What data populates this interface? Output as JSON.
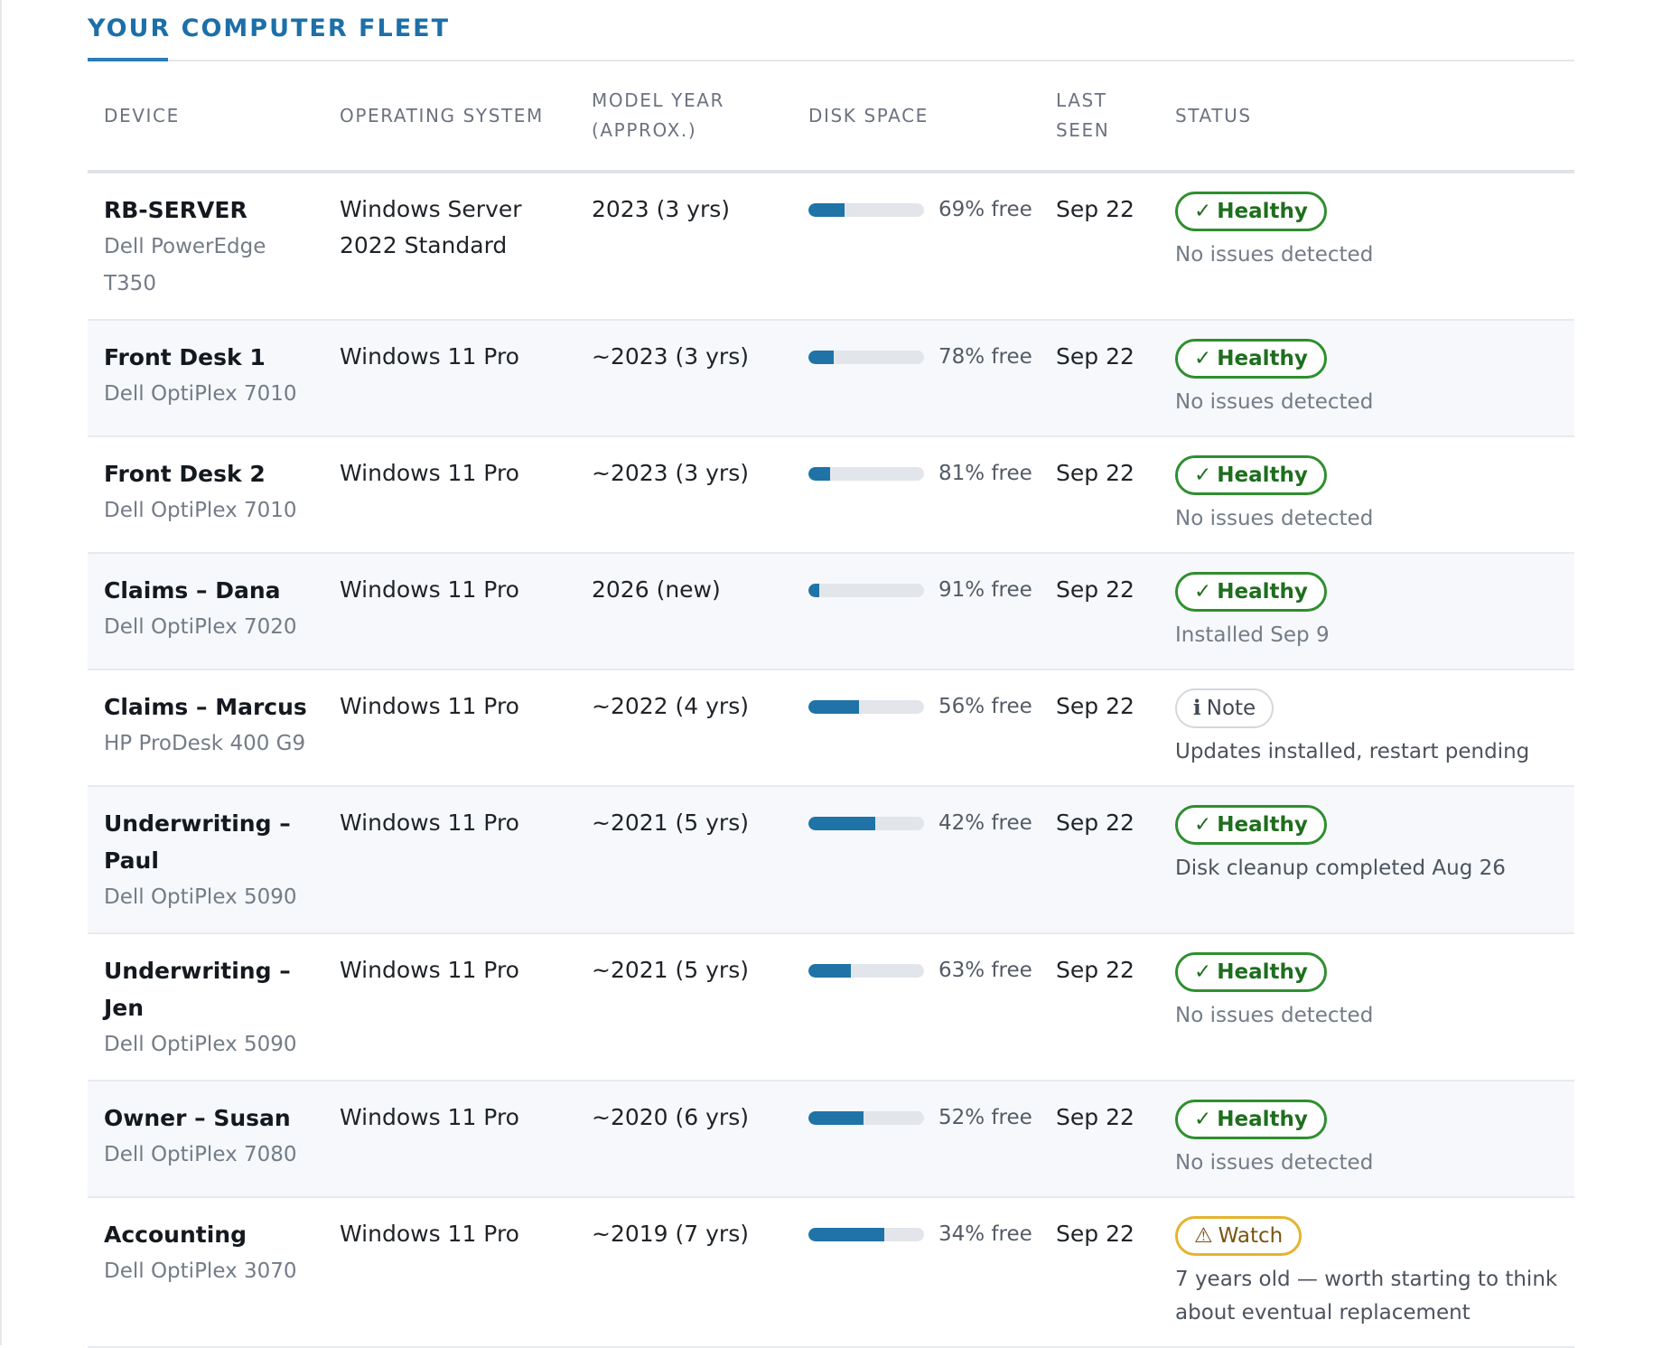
{
  "section": {
    "title": "YOUR COMPUTER FLEET"
  },
  "table": {
    "headers": {
      "device": "DEVICE",
      "os": "OPERATING SYSTEM",
      "model_year_1": "MODEL YEAR",
      "model_year_2": "(APPROX.)",
      "disk": "DISK SPACE",
      "last_seen_1": "LAST",
      "last_seen_2": "SEEN",
      "status": "STATUS"
    },
    "rows": [
      {
        "name": "RB-SERVER",
        "model": "Dell PowerEdge T350",
        "os": "Windows Server 2022 Standard",
        "year": "2023 (3 yrs)",
        "disk_used_pct": 31,
        "disk_label": "69% free",
        "last_seen": "Sep 22",
        "status": "healthy",
        "status_label": "Healthy",
        "status_icon": "✓",
        "status_note": "No issues detected"
      },
      {
        "name": "Front Desk 1",
        "model": "Dell OptiPlex 7010",
        "os": "Windows 11 Pro",
        "year": "~2023 (3 yrs)",
        "disk_used_pct": 22,
        "disk_label": "78% free",
        "last_seen": "Sep 22",
        "status": "healthy",
        "status_label": "Healthy",
        "status_icon": "✓",
        "status_note": "No issues detected"
      },
      {
        "name": "Front Desk 2",
        "model": "Dell OptiPlex 7010",
        "os": "Windows 11 Pro",
        "year": "~2023 (3 yrs)",
        "disk_used_pct": 19,
        "disk_label": "81% free",
        "last_seen": "Sep 22",
        "status": "healthy",
        "status_label": "Healthy",
        "status_icon": "✓",
        "status_note": "No issues detected"
      },
      {
        "name": "Claims – Dana",
        "model": "Dell OptiPlex 7020",
        "os": "Windows 11 Pro",
        "year": "2026 (new)",
        "disk_used_pct": 9,
        "disk_label": "91% free",
        "last_seen": "Sep 22",
        "status": "healthy",
        "status_label": "Healthy",
        "status_icon": "✓",
        "status_note": "Installed Sep 9"
      },
      {
        "name": "Claims – Marcus",
        "model": "HP ProDesk 400 G9",
        "os": "Windows 11 Pro",
        "year": "~2022 (4 yrs)",
        "disk_used_pct": 44,
        "disk_label": "56% free",
        "last_seen": "Sep 22",
        "status": "note",
        "status_label": "Note",
        "status_icon": "ℹ",
        "status_note": "Updates installed, restart pending"
      },
      {
        "name": "Underwriting – Paul",
        "model": "Dell OptiPlex 5090",
        "os": "Windows 11 Pro",
        "year": "~2021 (5 yrs)",
        "disk_used_pct": 58,
        "disk_label": "42% free",
        "last_seen": "Sep 22",
        "status": "healthy",
        "status_label": "Healthy",
        "status_icon": "✓",
        "status_note": "Disk cleanup completed Aug 26"
      },
      {
        "name": "Underwriting – Jen",
        "model": "Dell OptiPlex 5090",
        "os": "Windows 11 Pro",
        "year": "~2021 (5 yrs)",
        "disk_used_pct": 37,
        "disk_label": "63% free",
        "last_seen": "Sep 22",
        "status": "healthy",
        "status_label": "Healthy",
        "status_icon": "✓",
        "status_note": "No issues detected"
      },
      {
        "name": "Owner – Susan",
        "model": "Dell OptiPlex 7080",
        "os": "Windows 11 Pro",
        "year": "~2020 (6 yrs)",
        "disk_used_pct": 48,
        "disk_label": "52% free",
        "last_seen": "Sep 22",
        "status": "healthy",
        "status_label": "Healthy",
        "status_icon": "✓",
        "status_note": "No issues detected"
      },
      {
        "name": "Accounting",
        "model": "Dell OptiPlex 3070",
        "os": "Windows 11 Pro",
        "year": "~2019 (7 yrs)",
        "disk_used_pct": 66,
        "disk_label": "34% free",
        "last_seen": "Sep 22",
        "status": "watch",
        "status_label": "Watch",
        "status_icon": "⚠",
        "status_note": "7 years old — worth starting to think about eventual replacement"
      }
    ]
  },
  "colors": {
    "accent": "#1d6fa8",
    "bar_fill": "#1f73a6",
    "healthy": "#2e8f2e",
    "watch": "#e6b32e",
    "note_border": "#d4d8dd"
  }
}
